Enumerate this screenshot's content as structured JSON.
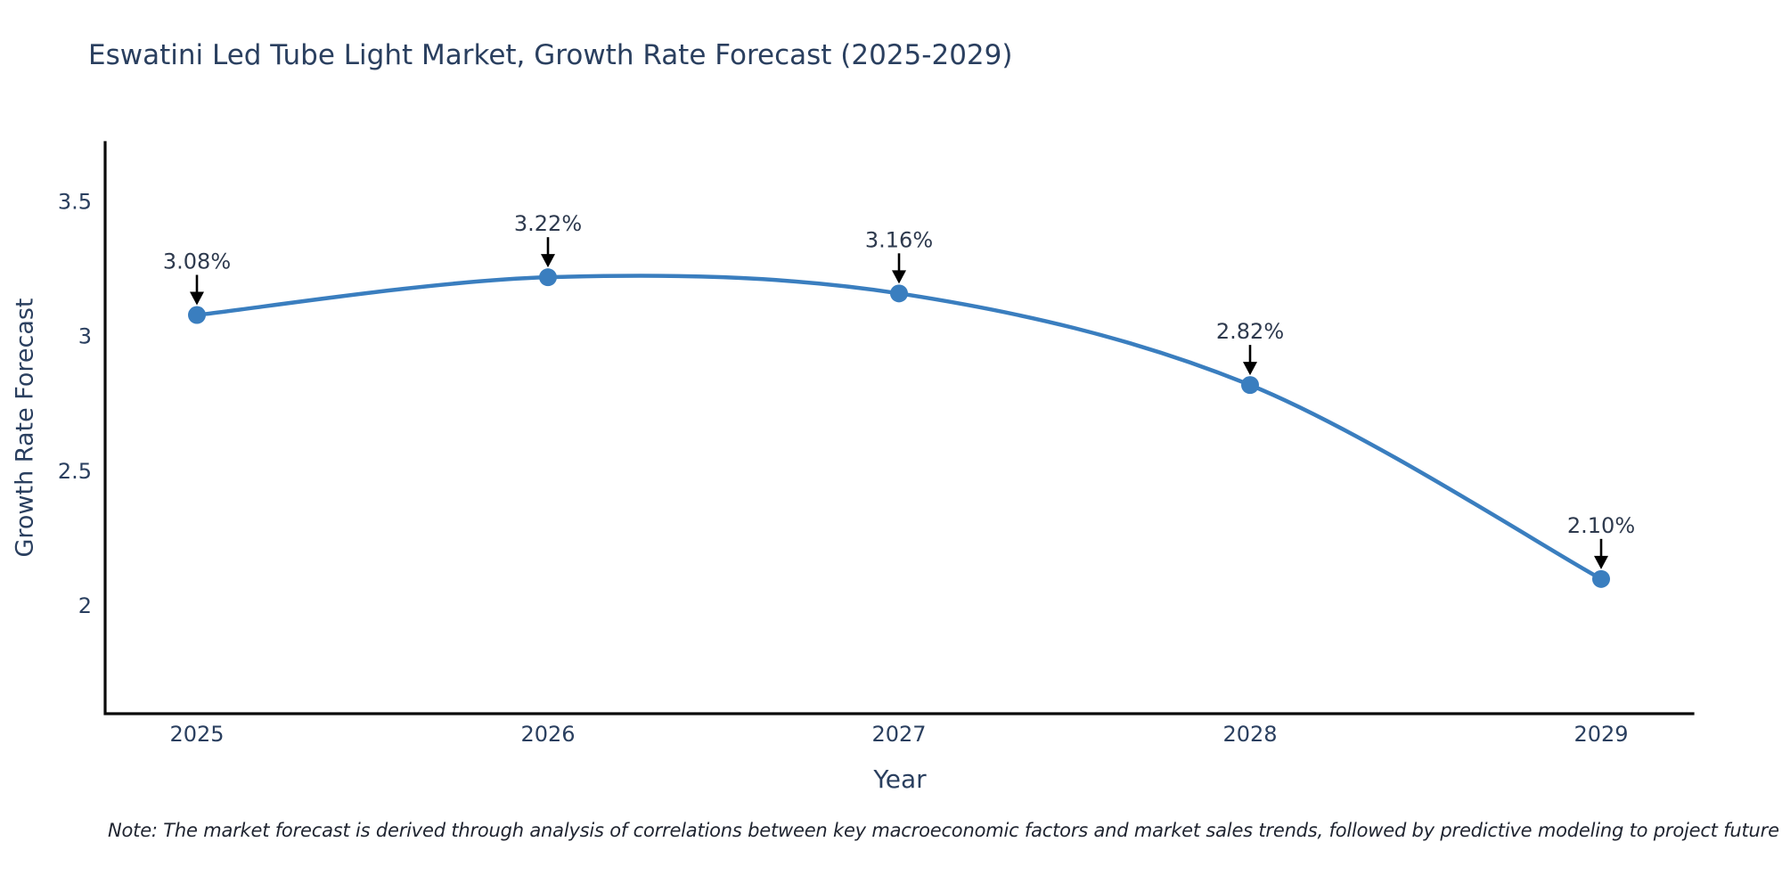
{
  "figure": {
    "note": "Note: The market forecast is derived through analysis of correlations between key macroeconomic factors and market sales trends, followed by predictive modeling to project future sales"
  },
  "chart_data": {
    "type": "line",
    "title": "Eswatini Led Tube Light Market, Growth Rate Forecast (2025-2029)",
    "x": [
      "2025",
      "2026",
      "2027",
      "2028",
      "2029"
    ],
    "series": [
      {
        "name": "Growth Rate Forecast",
        "values": [
          3.08,
          3.22,
          3.16,
          2.82,
          2.1
        ]
      }
    ],
    "point_labels": [
      "3.08%",
      "3.22%",
      "3.16%",
      "2.82%",
      "2.10%"
    ],
    "xlabel": "Year",
    "ylabel": "Growth Rate Forecast",
    "ytick_labels": [
      "2",
      "2.5",
      "3",
      "3.5"
    ],
    "ytick_values": [
      2,
      2.5,
      3,
      3.5
    ],
    "ylim": [
      1.6,
      3.72
    ],
    "line_shape": "spline",
    "grid": false,
    "legend": "none",
    "colors": {
      "line": "#3a7ebf",
      "marker": "#3a7ebf",
      "axis": "#0b0b0b",
      "tick_text": "#2a3f5f",
      "annotation_text": "#2e3a4e",
      "arrow": "#000000",
      "title_text": "#2a3f5f",
      "background": "#ffffff"
    }
  }
}
